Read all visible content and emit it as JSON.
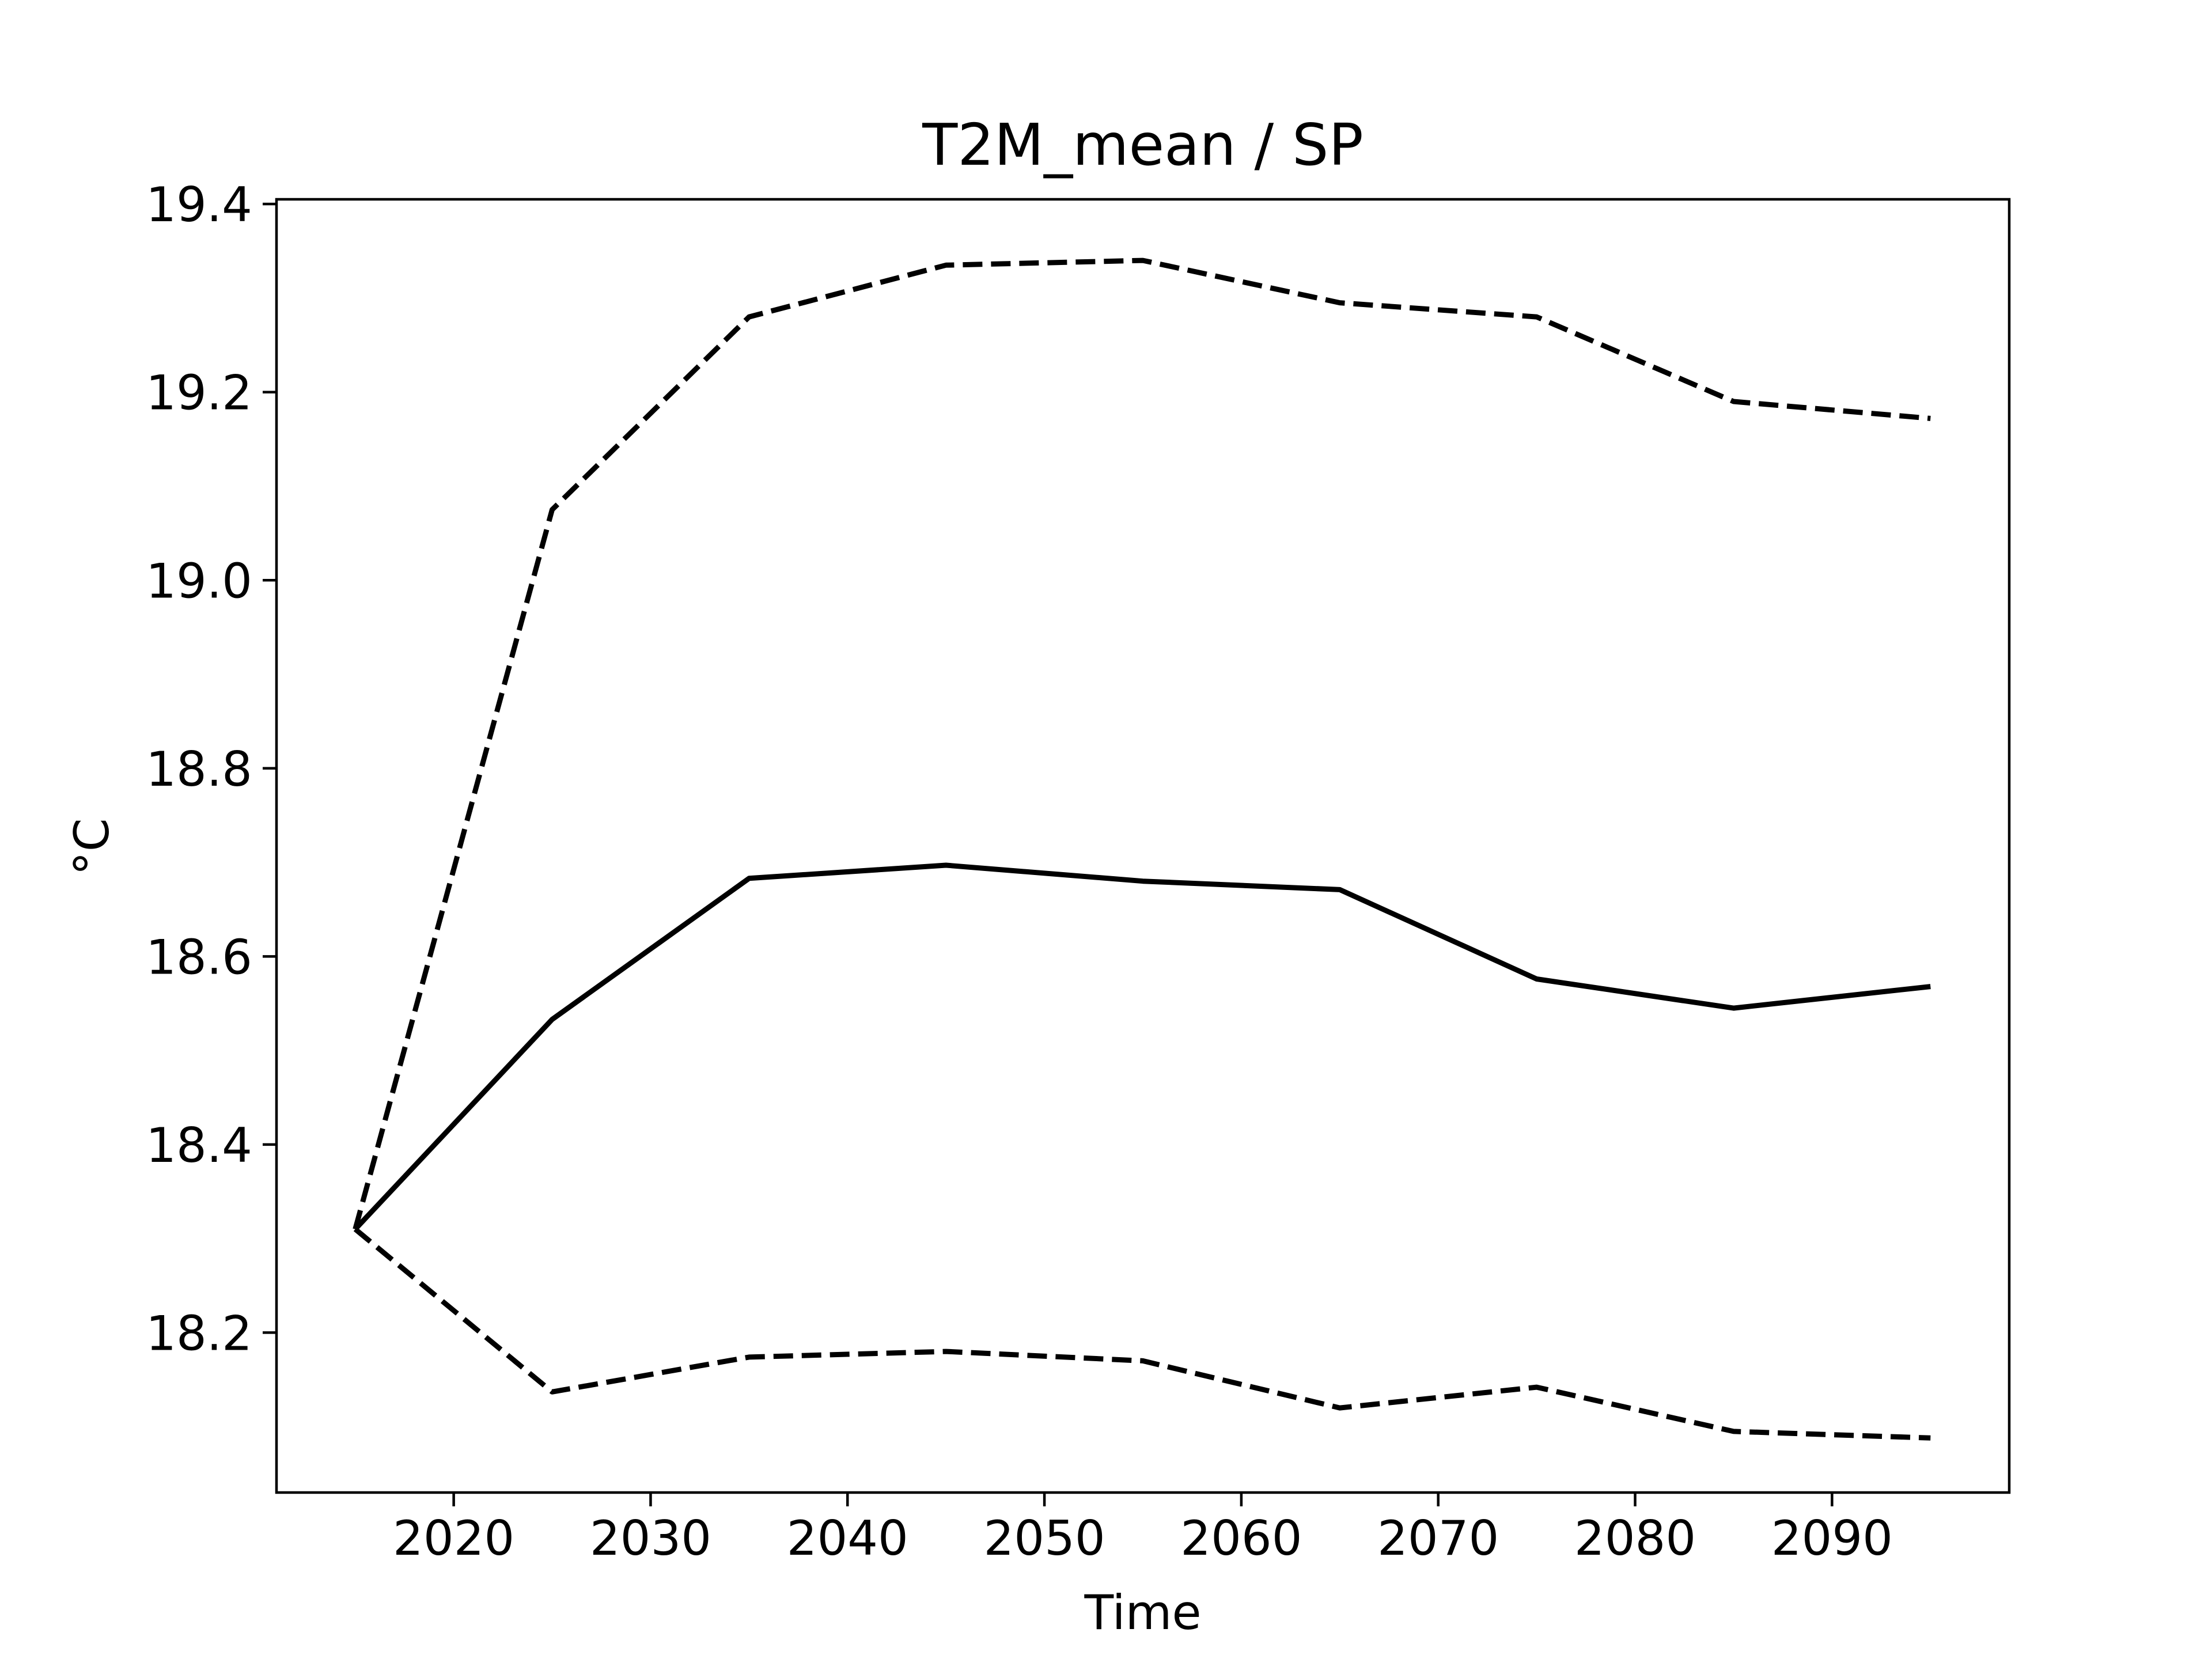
{
  "chart_data": {
    "type": "line",
    "title": "T2M_mean / SP",
    "xlabel": "Time",
    "ylabel": "°C",
    "xlim": [
      2011,
      2099
    ],
    "ylim": [
      18.03,
      19.405
    ],
    "xticks": [
      2020,
      2030,
      2040,
      2050,
      2060,
      2070,
      2080,
      2090
    ],
    "xtick_labels": [
      "2020",
      "2030",
      "2040",
      "2050",
      "2060",
      "2070",
      "2080",
      "2090"
    ],
    "yticks": [
      18.2,
      18.4,
      18.6,
      18.8,
      19.0,
      19.2,
      19.4
    ],
    "ytick_labels": [
      "18.2",
      "18.4",
      "18.6",
      "18.8",
      "19.0",
      "19.2",
      "19.4"
    ],
    "grid": false,
    "legend": "none",
    "x": [
      2015,
      2025,
      2035,
      2045,
      2055,
      2065,
      2075,
      2085,
      2095
    ],
    "series": [
      {
        "style": "dashed",
        "color": "#000000",
        "values": [
          18.31,
          19.075,
          19.28,
          19.335,
          19.34,
          19.295,
          19.28,
          19.19,
          19.172
        ]
      },
      {
        "style": "solid",
        "color": "#000000",
        "values": [
          18.31,
          18.533,
          18.683,
          18.697,
          18.68,
          18.671,
          18.576,
          18.545,
          18.568
        ]
      },
      {
        "style": "dashed",
        "color": "#000000",
        "values": [
          18.31,
          18.137,
          18.174,
          18.18,
          18.17,
          18.12,
          18.142,
          18.095,
          18.088
        ]
      }
    ]
  }
}
